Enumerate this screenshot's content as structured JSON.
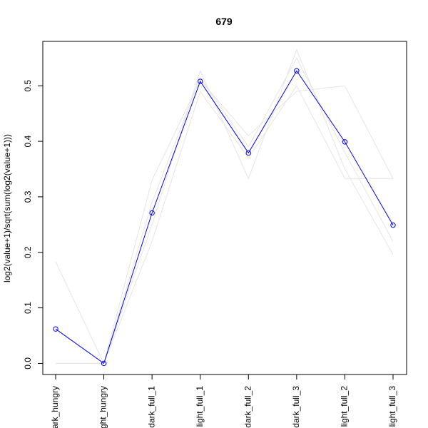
{
  "chart_data": {
    "type": "line",
    "title": "679",
    "xlabel": "",
    "ylabel": "log2(value+1)/sqrt(sum(log2(value+1)))",
    "categories": [
      "dark_hungry",
      "light_hungry",
      "dark_full_1",
      "light_full_1",
      "dark_full_2",
      "dark_full_3",
      "light_full_2",
      "light_full_3"
    ],
    "tick_labels": [
      "ark_hungry",
      "ght_hungry",
      "dark_full_1",
      "light_full_1",
      "dark_full_2",
      "dark_full_3",
      "light_full_2",
      "light_full_3"
    ],
    "y_ticks": [
      "0.0",
      "0.1",
      "0.2",
      "0.3",
      "0.4",
      "0.5"
    ],
    "ylim": [
      -0.02,
      0.58
    ],
    "grid": false,
    "series": [
      {
        "values": [
          0.062,
          0.0,
          0.271,
          0.508,
          0.379,
          0.527,
          0.399,
          0.249
        ],
        "color": "#0000ff",
        "markers": true
      },
      {
        "values": [
          0.183,
          0.0,
          0.33,
          0.51,
          0.41,
          0.49,
          0.5,
          0.333
        ],
        "color": "#e5e5e5",
        "markers": false
      },
      {
        "values": [
          0.0,
          0.0,
          0.25,
          0.527,
          0.333,
          0.565,
          0.35,
          0.196
        ],
        "color": "#e5e5e5",
        "markers": false
      },
      {
        "values": [
          0.0,
          0.0,
          0.22,
          0.49,
          0.37,
          0.5,
          0.333,
          0.333
        ],
        "color": "#e5e5e5",
        "markers": false
      },
      {
        "values": [
          0.0,
          0.0,
          0.29,
          0.515,
          0.39,
          0.55,
          0.38,
          0.22
        ],
        "color": "#e5e5e5",
        "markers": false
      }
    ]
  }
}
